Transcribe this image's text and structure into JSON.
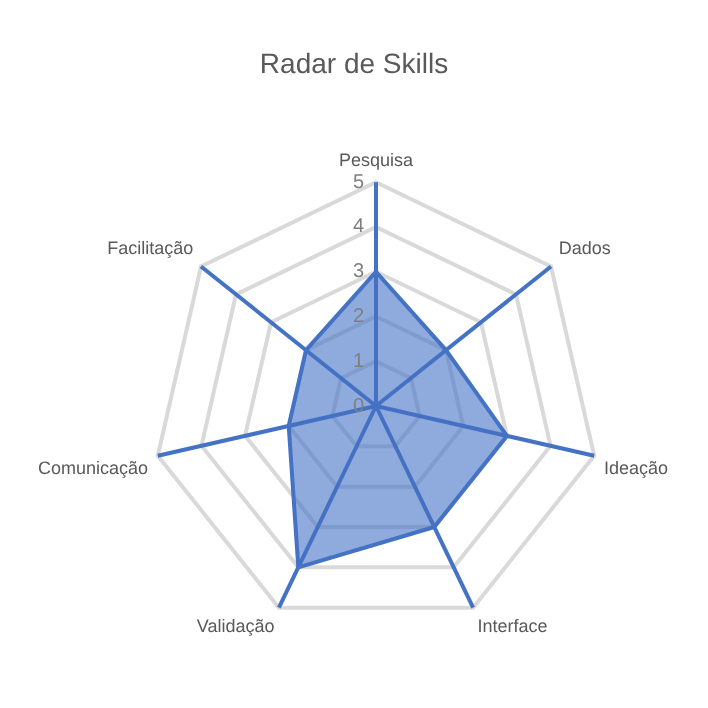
{
  "chart_data": {
    "type": "radar",
    "title": "Radar de Skills",
    "categories": [
      "Pesquisa",
      "Dados",
      "Ideação",
      "Interface",
      "Validação",
      "Comunicação",
      "Facilitação"
    ],
    "series": [
      {
        "color": "#4472c4",
        "values": [
          3,
          2,
          3,
          3,
          4,
          2,
          2
        ]
      }
    ],
    "ylim": [
      0,
      5
    ],
    "yticks": [
      0,
      1,
      2,
      3,
      4,
      5
    ],
    "grid": true,
    "legend": false,
    "marker": "none"
  }
}
